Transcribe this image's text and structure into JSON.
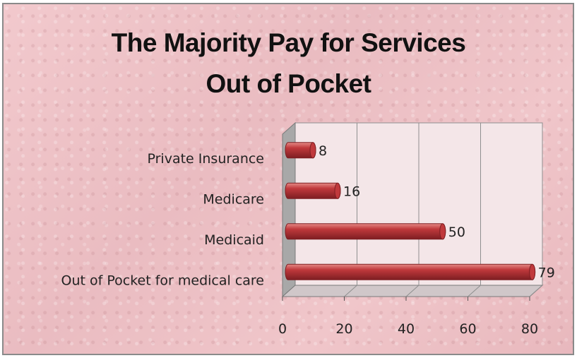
{
  "chart_data": {
    "type": "bar",
    "orientation": "horizontal",
    "title_lines": [
      "The Majority Pay for Services",
      "Out of Pocket"
    ],
    "categories": [
      "Private Insurance",
      "Medicare",
      "Medicaid",
      "Out of Pocket for medical care"
    ],
    "values": [
      8,
      16,
      50,
      79
    ],
    "data_labels": [
      "8",
      "16",
      "50",
      "79"
    ],
    "xlim": [
      0,
      80
    ],
    "x_ticks": [
      "0",
      "20",
      "40",
      "60",
      "80"
    ],
    "grid": true,
    "legend": "none",
    "xlabel": "",
    "ylabel": "",
    "colors": {
      "bar": "#c0393c",
      "bar_highlight": "#e58a86",
      "bar_dark": "#7e1e22",
      "plot_back": "#f4e6e8",
      "plot_side": "#a8a8a8",
      "plot_floor": "#d0c7c9",
      "grid": "#8f8f8f"
    }
  }
}
